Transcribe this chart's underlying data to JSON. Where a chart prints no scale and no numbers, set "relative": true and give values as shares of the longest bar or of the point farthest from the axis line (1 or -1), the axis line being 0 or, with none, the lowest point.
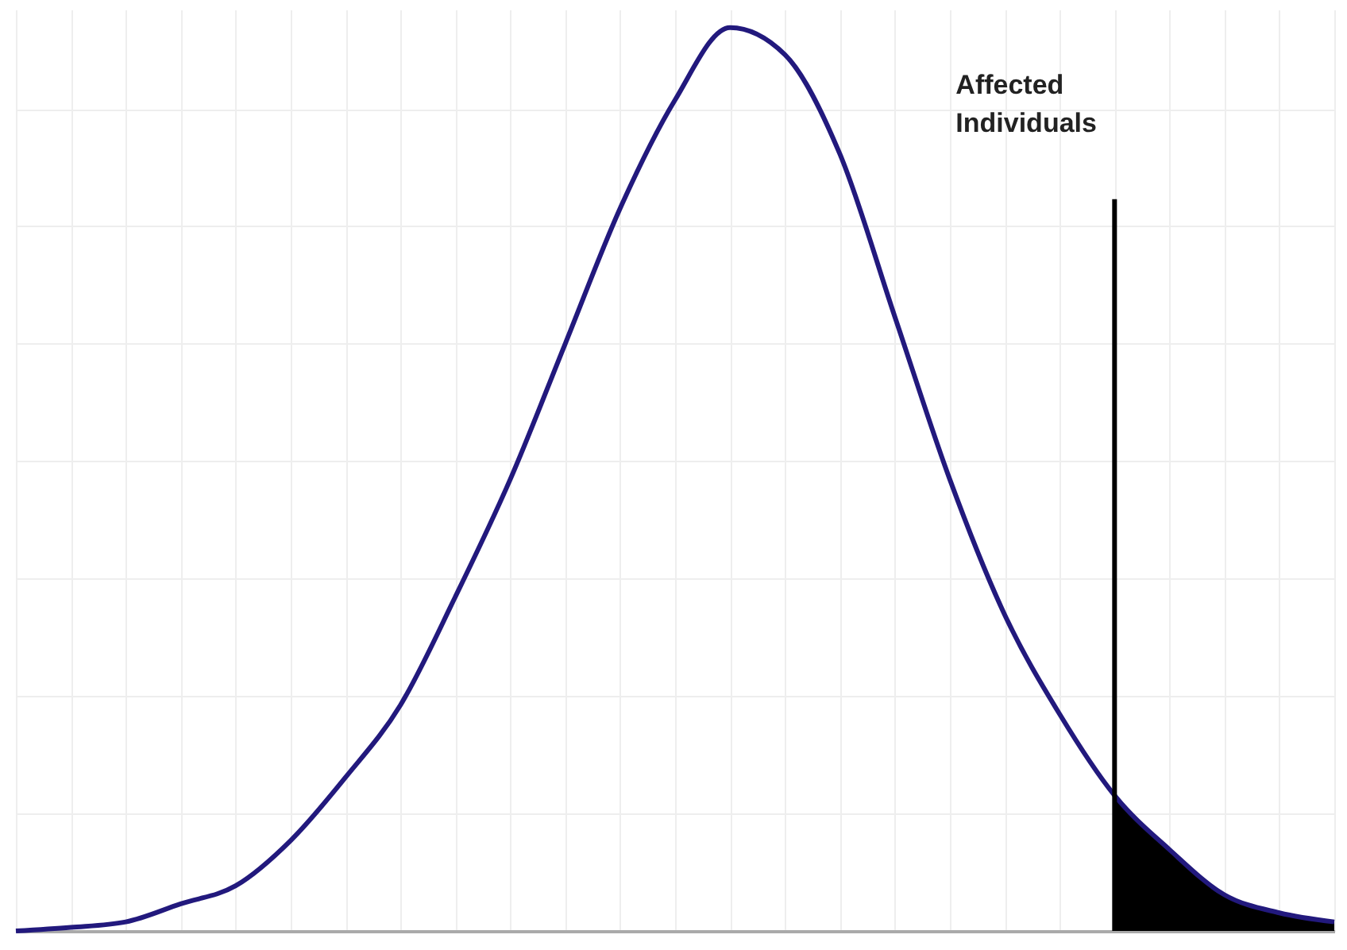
{
  "chart_data": {
    "type": "line",
    "relative": true,
    "grid": true,
    "categories": [
      null,
      null,
      null,
      null,
      null,
      null,
      null,
      null,
      null,
      null,
      null,
      null,
      null,
      null,
      null,
      null,
      null,
      null,
      null,
      null,
      null,
      null,
      null,
      null,
      null
    ],
    "series": [
      {
        "type": "line",
        "color": "#22197d",
        "values": [
          0,
          0.004,
          0.01,
          0.03,
          0.05,
          0.1,
          0.17,
          0.25,
          0.37,
          0.5,
          0.65,
          0.8,
          0.92,
          1,
          0.97,
          0.86,
          0.68,
          0.5,
          0.35,
          0.24,
          0.15,
          0.09,
          0.04,
          0.02,
          0.01
        ]
      },
      {
        "type": "area",
        "color": "#000000",
        "values": [
          null,
          null,
          null,
          null,
          null,
          null,
          null,
          null,
          null,
          null,
          null,
          null,
          null,
          null,
          null,
          null,
          null,
          null,
          null,
          null,
          0.15,
          0.09,
          0.04,
          0.02,
          0.01
        ]
      }
    ],
    "annotations": [
      "Affected Individuals"
    ]
  }
}
